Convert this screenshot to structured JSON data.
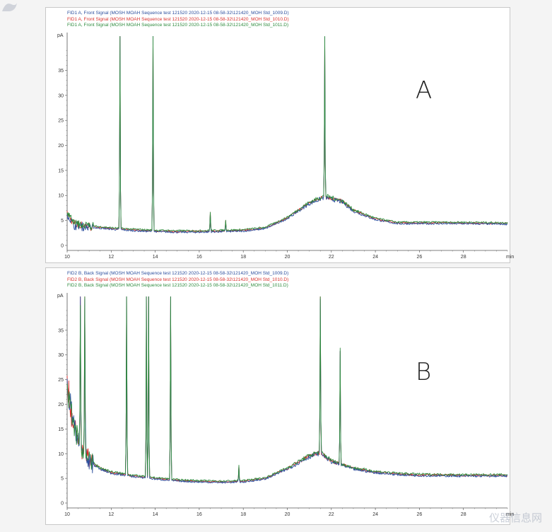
{
  "colors": {
    "series": [
      "#2c4f9e",
      "#d9302c",
      "#2e8b3e"
    ],
    "axis": "#555555",
    "background": "#ffffff"
  },
  "panels": [
    {
      "label": "A",
      "legend": [
        "FID1 A, Front Signal (MOSH MOAH Sequence test 121520 2020-12-15 08-58-32\\121420_MOH Std_1009.D)",
        "FID1 A, Front Signal (MOSH MOAH Sequence test 121520 2020-12-15 08-58-32\\121420_MOH Std_1010.D)",
        "FID1 A, Front Signal (MOSH MOAH Sequence test 121520 2020-12-15 08-58-32\\121420_MOH Std_1011.D)"
      ]
    },
    {
      "label": "B",
      "legend": [
        "FID2 B, Back Signal (MOSH MOAH Sequence test 121520 2020-12-15 08-58-32\\121420_MOH Std_1009.D)",
        "FID2 B, Back Signal (MOSH MOAH Sequence test 121520 2020-12-15 08-58-32\\121420_MOH Std_1010.D)",
        "FID2 B, Back Signal (MOSH MOAH Sequence test 121520 2020-12-15 08-58-32\\121420_MOH Std_1011.D)"
      ]
    }
  ],
  "chart_data": [
    {
      "type": "line",
      "label": "A",
      "ylabel": "pA",
      "xlabel": "min",
      "xlim": [
        10,
        30
      ],
      "ylim": [
        -1,
        42
      ],
      "xticks": [
        10,
        12,
        14,
        16,
        18,
        20,
        22,
        24,
        26,
        28
      ],
      "yticks": [
        0,
        5,
        10,
        15,
        20,
        25,
        30,
        35
      ],
      "baseline": [
        [
          10,
          6.5
        ],
        [
          10.3,
          4.2
        ],
        [
          11,
          3.8
        ],
        [
          12,
          3.4
        ],
        [
          13,
          3.1
        ],
        [
          14,
          2.9
        ],
        [
          15,
          2.8
        ],
        [
          16,
          2.8
        ],
        [
          17,
          2.9
        ],
        [
          18,
          3.0
        ],
        [
          19,
          3.5
        ],
        [
          20,
          5.5
        ],
        [
          21,
          8.5
        ],
        [
          21.7,
          9.8
        ],
        [
          22.5,
          8.8
        ],
        [
          23,
          7.0
        ],
        [
          24,
          5.3
        ],
        [
          25,
          4.5
        ],
        [
          26,
          4.5
        ],
        [
          28,
          4.5
        ],
        [
          30,
          4.4
        ]
      ],
      "peaks": [
        [
          12.4,
          42
        ],
        [
          13.9,
          42
        ],
        [
          16.5,
          6.5
        ],
        [
          17.2,
          4.8
        ],
        [
          21.7,
          42
        ]
      ],
      "series": [
        {
          "name": "FID1 A, Front Signal (MOSH MOAH Sequence test 121520 2020-12-15 08-58-32\\121420_MOH Std_1009.D)"
        },
        {
          "name": "FID1 A, Front Signal (MOSH MOAH Sequence test 121520 2020-12-15 08-58-32\\121420_MOH Std_1010.D)"
        },
        {
          "name": "FID1 A, Front Signal (MOSH MOAH Sequence test 121520 2020-12-15 08-58-32\\121420_MOH Std_1011.D)"
        }
      ]
    },
    {
      "type": "line",
      "label": "B",
      "ylabel": "pA",
      "xlabel": "min",
      "xlim": [
        10,
        30
      ],
      "ylim": [
        -1,
        42
      ],
      "xticks": [
        10,
        12,
        14,
        16,
        18,
        20,
        22,
        24,
        26,
        28
      ],
      "yticks": [
        0,
        5,
        10,
        15,
        20,
        25,
        30,
        35
      ],
      "baseline": [
        [
          10,
          24
        ],
        [
          10.2,
          18
        ],
        [
          10.5,
          12
        ],
        [
          11,
          8.5
        ],
        [
          11.5,
          7
        ],
        [
          12,
          6.2
        ],
        [
          13,
          5.5
        ],
        [
          14,
          5.0
        ],
        [
          15,
          4.6
        ],
        [
          16,
          4.4
        ],
        [
          17,
          4.3
        ],
        [
          18,
          4.4
        ],
        [
          19,
          5.0
        ],
        [
          20,
          7.0
        ],
        [
          21,
          9.5
        ],
        [
          21.5,
          10.3
        ],
        [
          22,
          8.5
        ],
        [
          23,
          7.0
        ],
        [
          24,
          6.3
        ],
        [
          25,
          5.9
        ],
        [
          26,
          5.7
        ],
        [
          28,
          5.6
        ],
        [
          30,
          5.6
        ]
      ],
      "peaks": [
        [
          10.6,
          42
        ],
        [
          10.8,
          42
        ],
        [
          12.7,
          42
        ],
        [
          13.6,
          42
        ],
        [
          13.7,
          42
        ],
        [
          14.7,
          42
        ],
        [
          21.5,
          42
        ],
        [
          22.4,
          31
        ],
        [
          17.8,
          7.5
        ]
      ],
      "series": [
        {
          "name": "FID2 B, Back Signal (MOSH MOAH Sequence test 121520 2020-12-15 08-58-32\\121420_MOH Std_1009.D)"
        },
        {
          "name": "FID2 B, Back Signal (MOSH MOAH Sequence test 121520 2020-12-15 08-58-32\\121420_MOH Std_1010.D)"
        },
        {
          "name": "FID2 B, Back Signal (MOSH MOAH Sequence test 121520 2020-12-15 08-58-32\\121420_MOH Std_1011.D)"
        }
      ]
    }
  ],
  "watermark": "仪器信息网"
}
